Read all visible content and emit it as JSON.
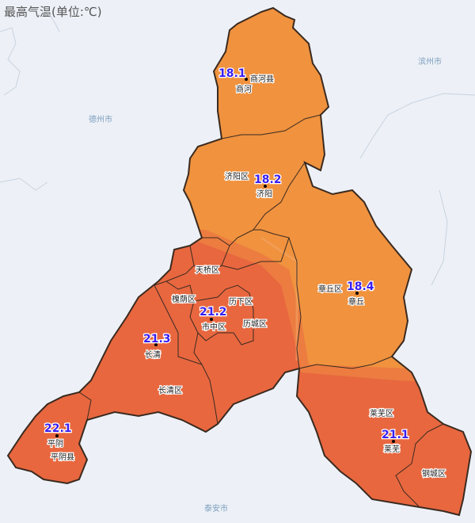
{
  "title": "最高气温(单位:℃)",
  "colors": {
    "background": "#edf1f7",
    "cool": "#f0923e",
    "warm": "#e8673f",
    "value_text": "#3a1df0"
  },
  "neighbor_cities": [
    "德州市",
    "滨州市",
    "泰安市"
  ],
  "stations": [
    {
      "name": "商河",
      "district": "商河县",
      "value": "18.1"
    },
    {
      "name": "济阳",
      "district": "济阳区",
      "value": "18.2"
    },
    {
      "name": "章丘",
      "district": "章丘区",
      "value": "18.4"
    },
    {
      "name": "市中区",
      "district": "市中区",
      "value": "21.2"
    },
    {
      "name": "长清",
      "district": "长清区",
      "value": "21.3"
    },
    {
      "name": "平阴",
      "district": "平阴县",
      "value": "22.1"
    },
    {
      "name": "莱芜",
      "district": "莱芜区",
      "value": "21.1"
    }
  ],
  "other_districts": [
    "天桥区",
    "槐荫区",
    "历下区",
    "历城区",
    "钢城区"
  ]
}
